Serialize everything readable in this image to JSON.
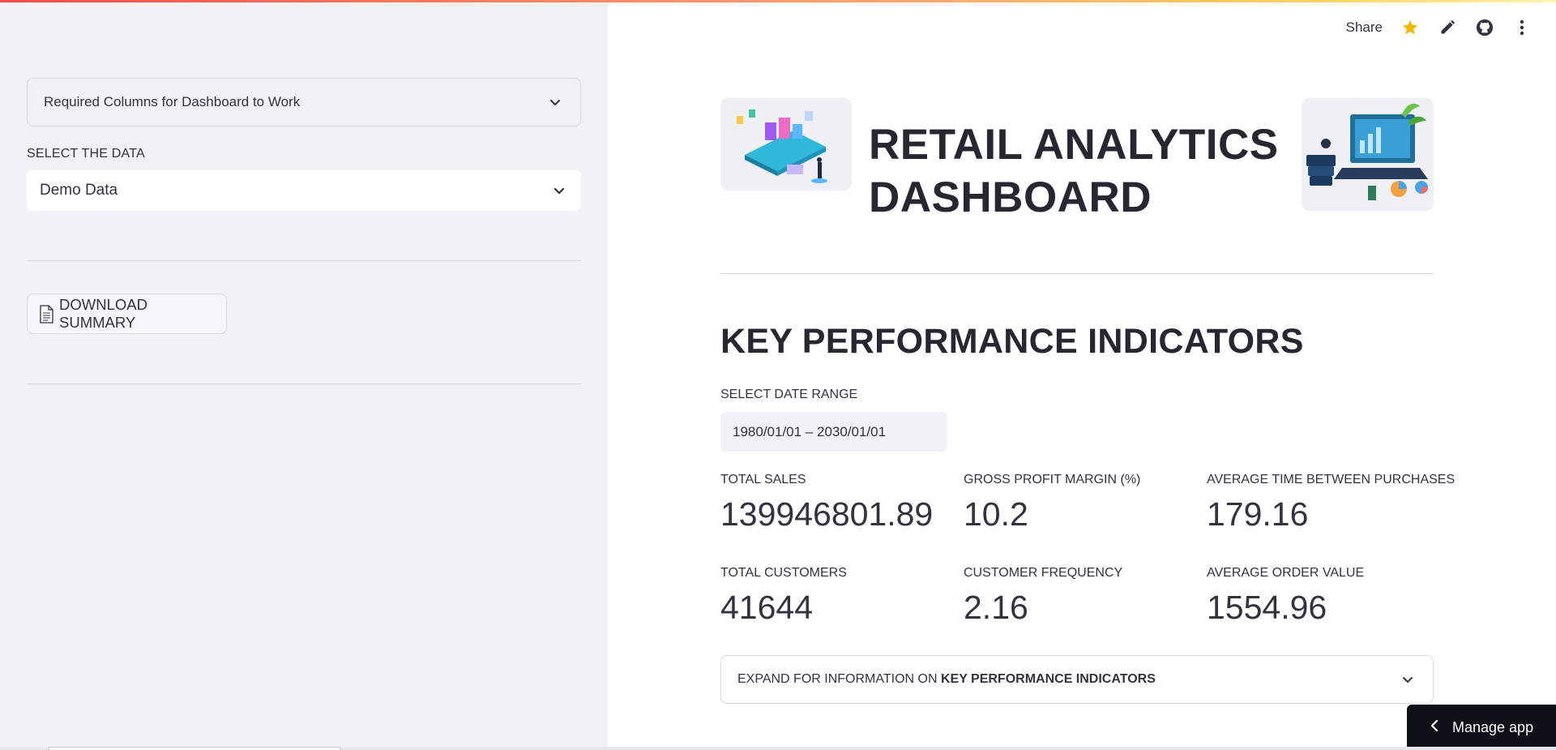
{
  "sidebar": {
    "required_columns_label": "Required Columns for Dashboard to Work",
    "select_data_label": "SELECT THE DATA",
    "select_data_value": "Demo Data",
    "download_button_label": "DOWNLOAD SUMMARY"
  },
  "toolbar": {
    "share_label": "Share",
    "icons": [
      "star-icon",
      "pencil-icon",
      "github-icon",
      "more-vertical-icon"
    ]
  },
  "header": {
    "title_line1": "RETAIL ANALYTICS",
    "title_line2": "DASHBOARD"
  },
  "kpi": {
    "section_title": "KEY PERFORMANCE INDICATORS",
    "date_range_label": "SELECT DATE RANGE",
    "date_range_value": "1980/01/01 – 2030/01/01",
    "metrics": [
      {
        "label": "TOTAL SALES",
        "value": "139946801.89"
      },
      {
        "label": "GROSS PROFIT MARGIN (%)",
        "value": "10.2"
      },
      {
        "label": "AVERAGE TIME BETWEEN PURCHASES",
        "value": "179.16"
      },
      {
        "label": "TOTAL CUSTOMERS",
        "value": "41644"
      },
      {
        "label": "CUSTOMER FREQUENCY",
        "value": "2.16"
      },
      {
        "label": "AVERAGE ORDER VALUE",
        "value": "1554.96"
      }
    ],
    "expander_prefix": "EXPAND FOR INFORMATION ON ",
    "expander_bold": "KEY PERFORMANCE INDICATORS"
  },
  "manage_app_label": "Manage app",
  "colors": {
    "sidebar_bg": "#f0f2f6",
    "text": "#31333f",
    "dark_button": "#0e1117",
    "accent_star": "#f5b800"
  }
}
